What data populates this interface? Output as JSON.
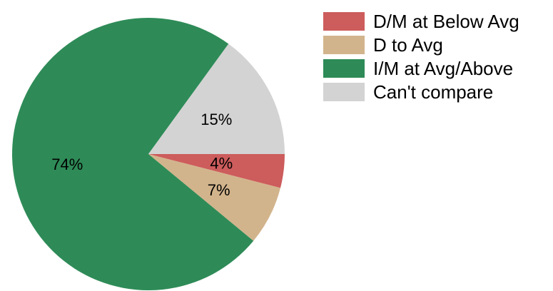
{
  "chart_data": {
    "type": "pie",
    "title": "",
    "legend_position": "top-right",
    "start_angle_deg": 0,
    "direction": "clockwise",
    "slices": [
      {
        "name": "D/M at Below Avg",
        "value": 4,
        "label": "4%",
        "color": "#CD5C5C"
      },
      {
        "name": "D to Avg",
        "value": 7,
        "label": "7%",
        "color": "#D2B48C"
      },
      {
        "name": "I/M at Avg/Above",
        "value": 74,
        "label": "74%",
        "color": "#2E8B57"
      },
      {
        "name": "Can't compare",
        "value": 15,
        "label": "15%",
        "color": "#D3D3D3"
      }
    ]
  }
}
